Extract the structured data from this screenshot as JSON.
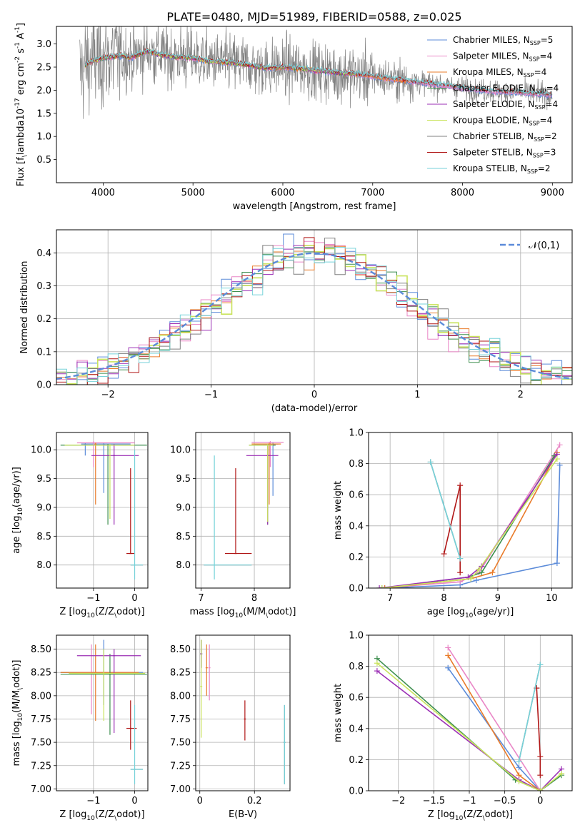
{
  "figure": {
    "title": "PLATE=0480, MJD=51989, FIBERID=0588, z=0.025"
  },
  "model_colors": [
    "#5b8bd9",
    "#e986c6",
    "#e97b2a",
    "#3e8f4f",
    "#9b2fb5",
    "#c9e35c",
    "#808080",
    "#b01616",
    "#76d2d9"
  ],
  "chart_data": [
    {
      "id": "spectrum",
      "type": "line",
      "title": "PLATE=0480, MJD=51989, FIBERID=0588, z=0.025",
      "xlabel": "wavelength [Angstrom, rest frame]",
      "ylabel": "Flux [f$_\\lambda$10$^{-17}$ erg cm$^{-2}$ s$^{-1}$ A$^{-1}$]",
      "xlim": [
        3480,
        9220
      ],
      "ylim": [
        0,
        3.38
      ],
      "xticks": [
        4000,
        5000,
        6000,
        7000,
        8000,
        9000
      ],
      "yticks": [
        0.5,
        1.0,
        1.5,
        2.0,
        2.5,
        3.0
      ],
      "legend_position": "top-right",
      "legend": [
        {
          "label": "Chabrier MILES, N",
          "sub": "SSP",
          "suffix": "=5"
        },
        {
          "label": "Salpeter MILES, N",
          "sub": "SSP",
          "suffix": "=4"
        },
        {
          "label": "Kroupa MILES, N",
          "sub": "SSP",
          "suffix": "=4"
        },
        {
          "label": "Chabrier ELODIE, N",
          "sub": "SSP",
          "suffix": "=4"
        },
        {
          "label": "Salpeter ELODIE, N",
          "sub": "SSP",
          "suffix": "=4"
        },
        {
          "label": "Kroupa ELODIE, N",
          "sub": "SSP",
          "suffix": "=4"
        },
        {
          "label": "Chabrier STELIB, N",
          "sub": "SSP",
          "suffix": "=2"
        },
        {
          "label": "Salpeter STELIB, N",
          "sub": "SSP",
          "suffix": "=3"
        },
        {
          "label": "Kroupa STELIB, N",
          "sub": "SSP",
          "suffix": "=2"
        }
      ],
      "continuum": {
        "x": [
          3700,
          3800,
          3900,
          4000,
          4100,
          4200,
          4300,
          4400,
          4500,
          4600,
          4800,
          5000,
          5200,
          5400,
          5600,
          5800,
          6000,
          6200,
          6400,
          6600,
          6800,
          7000,
          7200,
          7400,
          7600,
          7800,
          8000,
          8200,
          8400,
          8600,
          8800,
          9000
        ],
        "y": [
          2.2,
          2.55,
          2.65,
          2.7,
          2.72,
          2.75,
          2.7,
          2.78,
          2.85,
          2.78,
          2.72,
          2.7,
          2.62,
          2.6,
          2.55,
          2.48,
          2.5,
          2.47,
          2.42,
          2.38,
          2.35,
          2.3,
          2.25,
          2.2,
          2.15,
          2.1,
          2.05,
          2.0,
          1.97,
          1.95,
          1.92,
          1.9
        ]
      },
      "model_ranges": [
        [
          3800,
          9000
        ],
        [
          3800,
          9000
        ],
        [
          3800,
          7420
        ],
        [
          3800,
          6800
        ],
        [
          3800,
          6800
        ],
        [
          3800,
          6800
        ],
        [
          3800,
          9000
        ],
        [
          3800,
          9000
        ],
        [
          3800,
          9000
        ]
      ]
    },
    {
      "id": "residual_hist",
      "type": "line",
      "xlabel": "(data-model)/error",
      "ylabel": "Normed distribution",
      "xlim": [
        -2.5,
        2.5
      ],
      "ylim": [
        0,
        0.47
      ],
      "xticks": [
        -2,
        -1,
        0,
        1,
        2
      ],
      "yticks": [
        0.0,
        0.1,
        0.2,
        0.3,
        0.4
      ],
      "bin_width": 0.1,
      "bin_start": -2.5,
      "legend_position": "top-right",
      "gaussian_label": "$\\mathcal{N}(0,1)$"
    },
    {
      "id": "age_vs_Z",
      "type": "scatter",
      "xlabel": "Z [log$_{10}$($Z/Z_\\odot$)]",
      "ylabel": "age  [log$_{10}$($age/yr$)]",
      "xlim": [
        -1.9,
        0.32
      ],
      "ylim": [
        7.6,
        10.3
      ],
      "xticks": [
        -1,
        0
      ],
      "yticks": [
        8.0,
        8.5,
        9.0,
        9.5,
        10.0
      ],
      "points": [
        {
          "m": 0,
          "x": -1.2,
          "xe": [
            -1.3,
            -0.1
          ],
          "y": 10.1,
          "ye": [
            9.9,
            10.12
          ]
        },
        {
          "m": 0,
          "x": -0.75,
          "y": 10.1,
          "ye": [
            9.25,
            10.12
          ]
        },
        {
          "m": 1,
          "x": -1.0,
          "xe": [
            -1.4,
            0.0
          ],
          "y": 10.12,
          "ye": [
            9.7,
            10.15
          ]
        },
        {
          "m": 2,
          "x": -0.95,
          "y": 10.1,
          "ye": [
            9.05,
            10.12
          ]
        },
        {
          "m": 3,
          "x": -0.65,
          "xe": [
            -1.8,
            0.3
          ],
          "y": 10.08,
          "ye": [
            8.7,
            10.1
          ]
        },
        {
          "m": 4,
          "x": -0.5,
          "xe": [
            -1.05,
            0.1
          ],
          "y": 9.9,
          "ye": [
            8.7,
            10.1
          ]
        },
        {
          "m": 5,
          "x": -0.6,
          "xe": [
            -1.7,
            0.0
          ],
          "y": 10.08,
          "ye": [
            8.8,
            10.1
          ]
        },
        {
          "m": 6,
          "x": 0.0,
          "xe": [
            -0.1,
            0.2
          ],
          "y": 8.0
        },
        {
          "m": 7,
          "x": -0.1,
          "xe": [
            -0.2,
            0.0
          ],
          "y": 8.2,
          "ye": [
            8.2,
            9.68
          ]
        },
        {
          "m": 8,
          "x": 0.0,
          "xe": [
            -0.1,
            0.2
          ],
          "y": 8.0,
          "ye": [
            7.75,
            10.0
          ]
        }
      ]
    },
    {
      "id": "age_vs_mass",
      "type": "scatter",
      "xlabel": "mass [log$_{10}$($M/M_\\odot$)]",
      "xlim": [
        6.9,
        8.67
      ],
      "ylim": [
        7.6,
        10.3
      ],
      "xticks": [
        7,
        8
      ],
      "yticks": [
        8.0,
        8.5,
        9.0,
        9.5,
        10.0
      ],
      "points": [
        {
          "m": 0,
          "x": 8.35,
          "xe": [
            8.0,
            8.45
          ],
          "y": 10.1,
          "ye": [
            9.2,
            10.12
          ]
        },
        {
          "m": 1,
          "x": 8.3,
          "xe": [
            7.95,
            8.55
          ],
          "y": 10.13,
          "ye": [
            9.7,
            10.15
          ]
        },
        {
          "m": 2,
          "x": 8.28,
          "xe": [
            7.95,
            8.5
          ],
          "y": 10.1,
          "ye": [
            9.05,
            10.12
          ]
        },
        {
          "m": 3,
          "x": 8.25,
          "xe": [
            7.9,
            8.4
          ],
          "y": 10.08,
          "ye": [
            8.7,
            10.1
          ]
        },
        {
          "m": 4,
          "x": 8.25,
          "xe": [
            7.85,
            8.45
          ],
          "y": 9.9,
          "ye": [
            8.7,
            10.1
          ]
        },
        {
          "m": 5,
          "x": 8.25,
          "xe": [
            7.9,
            8.35
          ],
          "y": 10.08,
          "ye": [
            8.75,
            10.1
          ]
        },
        {
          "m": 6,
          "x": 7.25,
          "xe": [
            7.05,
            7.95
          ],
          "y": 8.0
        },
        {
          "m": 7,
          "x": 7.65,
          "xe": [
            7.45,
            7.95
          ],
          "y": 8.2,
          "ye": [
            8.2,
            9.68
          ]
        },
        {
          "m": 8,
          "x": 7.25,
          "xe": [
            7.05,
            7.95
          ],
          "y": 8.0,
          "ye": [
            7.75,
            9.9
          ]
        }
      ]
    },
    {
      "id": "weight_vs_age",
      "type": "line",
      "xlabel": "age  [log$_{10}$($age/yr$)]",
      "ylabel": "mass weight",
      "xlim": [
        6.6,
        10.38
      ],
      "ylim": [
        0,
        1.0
      ],
      "xticks": [
        7,
        8,
        9,
        10
      ],
      "yticks": [
        0.0,
        0.2,
        0.4,
        0.6,
        0.8,
        1.0
      ],
      "series": [
        {
          "m": 0,
          "x": [
            6.9,
            8.3,
            8.6,
            10.1,
            10.15
          ],
          "y": [
            0.0,
            0.02,
            0.05,
            0.16,
            0.79
          ]
        },
        {
          "m": 1,
          "x": [
            6.85,
            8.3,
            8.65,
            10.15
          ],
          "y": [
            0.0,
            0.04,
            0.1,
            0.92
          ]
        },
        {
          "m": 2,
          "x": [
            6.9,
            8.5,
            8.9,
            10.1
          ],
          "y": [
            0.0,
            0.06,
            0.1,
            0.87
          ]
        },
        {
          "m": 3,
          "x": [
            6.85,
            8.45,
            8.7,
            10.05
          ],
          "y": [
            0.0,
            0.07,
            0.1,
            0.85
          ]
        },
        {
          "m": 4,
          "x": [
            6.8,
            8.45,
            8.7,
            10.1
          ],
          "y": [
            0.0,
            0.07,
            0.14,
            0.86
          ]
        },
        {
          "m": 5,
          "x": [
            6.85,
            8.5,
            8.65,
            10.1
          ],
          "y": [
            0.0,
            0.06,
            0.12,
            0.83
          ]
        },
        {
          "m": 6,
          "x": [
            7.75,
            8.3
          ],
          "y": [
            0.81,
            0.19
          ]
        },
        {
          "m": 7,
          "x": [
            8.0,
            8.3,
            8.3
          ],
          "y": [
            0.22,
            0.66,
            0.1
          ]
        },
        {
          "m": 8,
          "x": [
            7.75,
            8.3
          ],
          "y": [
            0.81,
            0.19
          ]
        }
      ]
    },
    {
      "id": "mass_vs_Z",
      "type": "scatter",
      "xlabel": "Z [log$_{10}$($Z/Z_\\odot$)]",
      "ylabel": "mass [log$_{10}$($M/M_\\odot$)]",
      "xlim": [
        -1.9,
        0.32
      ],
      "ylim": [
        6.98,
        8.65
      ],
      "xticks": [
        -1,
        0
      ],
      "yticks": [
        7.0,
        7.25,
        7.5,
        7.75,
        8.0,
        8.25,
        8.5
      ],
      "points": [
        {
          "m": 0,
          "x": -0.75,
          "xe": [
            -1.8,
            0.2
          ],
          "y": 8.25,
          "ye": [
            7.9,
            8.6
          ]
        },
        {
          "m": 1,
          "x": -1.05,
          "xe": [
            -1.4,
            -0.05
          ],
          "y": 8.25,
          "ye": [
            7.8,
            8.55
          ]
        },
        {
          "m": 2,
          "x": -0.95,
          "xe": [
            -1.8,
            0.1
          ],
          "y": 8.25,
          "ye": [
            7.73,
            8.55
          ]
        },
        {
          "m": 3,
          "x": -0.6,
          "xe": [
            -1.8,
            0.3
          ],
          "y": 8.23,
          "ye": [
            7.58,
            8.45
          ]
        },
        {
          "m": 4,
          "x": -0.5,
          "xe": [
            -1.4,
            0.15
          ],
          "y": 8.43,
          "ye": [
            7.6,
            8.5
          ]
        },
        {
          "m": 5,
          "x": -0.75,
          "xe": [
            -1.6,
            0.25
          ],
          "y": 8.24,
          "ye": [
            7.73,
            8.5
          ]
        },
        {
          "m": 6,
          "x": 0.0,
          "xe": [
            -0.1,
            0.2
          ],
          "y": 7.21
        },
        {
          "m": 7,
          "x": -0.1,
          "xe": [
            -0.2,
            0.05
          ],
          "y": 7.65,
          "ye": [
            7.42,
            7.95
          ]
        },
        {
          "m": 8,
          "x": 0.0,
          "xe": [
            -0.1,
            0.2
          ],
          "y": 7.21,
          "ye": [
            7.05,
            7.9
          ]
        }
      ]
    },
    {
      "id": "mass_vs_ebv",
      "type": "scatter",
      "xlabel": "E(B-V)",
      "xlim": [
        -0.015,
        0.33
      ],
      "ylim": [
        6.98,
        8.65
      ],
      "xticks": [
        0.0,
        0.2
      ],
      "yticks": [
        7.0,
        7.25,
        7.5,
        7.75,
        8.0,
        8.25,
        8.5
      ],
      "points": [
        {
          "m": 0,
          "x": 0.005,
          "y": 8.45,
          "ye": [
            8.3,
            8.6
          ]
        },
        {
          "m": 1,
          "x": 0.035,
          "y": 8.3,
          "ye": [
            7.95,
            8.55
          ]
        },
        {
          "m": 2,
          "x": 0.025,
          "y": 8.3,
          "ye": [
            8.0,
            8.55
          ]
        },
        {
          "m": 3,
          "x": 0.005,
          "y": 8.45,
          "ye": [
            8.3,
            8.6
          ]
        },
        {
          "m": 4,
          "x": 0.005,
          "y": 8.45,
          "ye": [
            8.3,
            8.6
          ]
        },
        {
          "m": 5,
          "x": 0.005,
          "y": 8.1,
          "ye": [
            7.55,
            8.6
          ]
        },
        {
          "m": 6,
          "x": 0.31,
          "y": 7.5,
          "ye": [
            7.05,
            7.9
          ]
        },
        {
          "m": 7,
          "x": 0.165,
          "y": 7.75,
          "ye": [
            7.52,
            7.95
          ]
        },
        {
          "m": 8,
          "x": 0.31,
          "y": 7.5,
          "ye": [
            7.05,
            7.9
          ]
        }
      ]
    },
    {
      "id": "weight_vs_Z",
      "type": "line",
      "xlabel": "Z [log$_{10}$($Z/Z_\\odot$)]",
      "ylabel": "mass weight",
      "xlim": [
        -2.42,
        0.45
      ],
      "ylim": [
        0,
        1.0
      ],
      "xticks": [
        -2.0,
        -1.5,
        -1.0,
        -0.5,
        0.0
      ],
      "yticks": [
        0.0,
        0.2,
        0.4,
        0.6,
        0.8,
        1.0
      ],
      "series": [
        {
          "m": 0,
          "x": [
            -1.3,
            -0.3,
            0.0
          ],
          "y": [
            0.79,
            0.15,
            0.0
          ]
        },
        {
          "m": 1,
          "x": [
            -1.3,
            0.0
          ],
          "y": [
            0.92,
            0.0
          ]
        },
        {
          "m": 2,
          "x": [
            -1.3,
            -0.3,
            0.0
          ],
          "y": [
            0.87,
            0.1,
            0.0
          ]
        },
        {
          "m": 3,
          "x": [
            -2.3,
            -0.35,
            0.0,
            0.3
          ],
          "y": [
            0.85,
            0.07,
            0.0,
            0.1
          ]
        },
        {
          "m": 4,
          "x": [
            -2.3,
            -0.3,
            0.0,
            0.3
          ],
          "y": [
            0.77,
            0.07,
            0.0,
            0.14
          ]
        },
        {
          "m": 5,
          "x": [
            -2.3,
            -0.3,
            0.0,
            0.3
          ],
          "y": [
            0.82,
            0.06,
            0.0,
            0.11
          ]
        },
        {
          "m": 6,
          "x": [
            -0.3,
            0.0
          ],
          "y": [
            0.19,
            0.81
          ]
        },
        {
          "m": 7,
          "x": [
            -0.05,
            0.0,
            0.0
          ],
          "y": [
            0.66,
            0.22,
            0.1
          ]
        },
        {
          "m": 8,
          "x": [
            -0.3,
            0.0
          ],
          "y": [
            0.19,
            0.81
          ]
        }
      ]
    }
  ]
}
